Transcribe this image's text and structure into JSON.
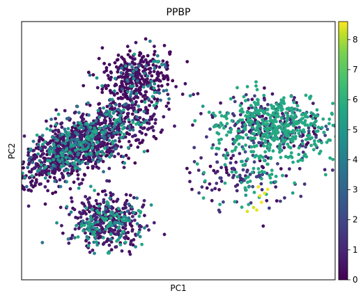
{
  "chart_data": {
    "type": "scatter",
    "title": "PPBP",
    "xlabel": "PC1",
    "ylabel": "PC2",
    "x_ticks_shown": false,
    "y_ticks_shown": false,
    "grid": false,
    "colorbar": {
      "colormap": "viridis",
      "range": [
        0,
        8.6
      ],
      "ticks": [
        "0",
        "1",
        "2",
        "3",
        "4",
        "5",
        "6",
        "7",
        "8"
      ],
      "placement": "right"
    },
    "clusters": [
      {
        "name": "",
        "center": [
          -0.62,
          0.05
        ],
        "spread": [
          0.25,
          0.1
        ],
        "rotation": 0.55,
        "count": 1250,
        "typical_value": 1.2,
        "high_value_share": 0.25
      },
      {
        "name": "",
        "center": [
          -0.28,
          0.55
        ],
        "spread": [
          0.12,
          0.1
        ],
        "rotation": 0.5,
        "count": 380,
        "typical_value": 0.8,
        "high_value_share": 0.15
      },
      {
        "name": "",
        "center": [
          -0.45,
          -0.55
        ],
        "spread": [
          0.12,
          0.1
        ],
        "rotation": 0.0,
        "count": 450,
        "typical_value": 1.5,
        "high_value_share": 0.3
      },
      {
        "name": "",
        "center": [
          0.62,
          0.18
        ],
        "spread": [
          0.18,
          0.12
        ],
        "rotation": -0.1,
        "count": 650,
        "typical_value": 4.0,
        "high_value_share": 0.6
      },
      {
        "name": "",
        "center": [
          0.42,
          -0.18
        ],
        "spread": [
          0.16,
          0.12
        ],
        "rotation": 0.0,
        "count": 170,
        "typical_value": 3.0,
        "high_value_share": 0.4
      }
    ],
    "high_expression_points": [
      {
        "x": 0.52,
        "y": -0.35,
        "value": 8.4
      },
      {
        "x": 0.55,
        "y": -0.33,
        "value": 8.2
      },
      {
        "x": 0.48,
        "y": -0.44,
        "value": 8.0
      },
      {
        "x": 0.5,
        "y": -0.46,
        "value": 8.3
      },
      {
        "x": 0.57,
        "y": -0.3,
        "value": 8.5
      },
      {
        "x": 0.44,
        "y": -0.47,
        "value": 8.1
      },
      {
        "x": 0.51,
        "y": -0.28,
        "value": 8.4
      },
      {
        "x": 0.53,
        "y": -0.4,
        "value": 8.6
      }
    ],
    "xlim": [
      -1.0,
      1.0
    ],
    "ylim": [
      -1.0,
      1.0
    ]
  }
}
